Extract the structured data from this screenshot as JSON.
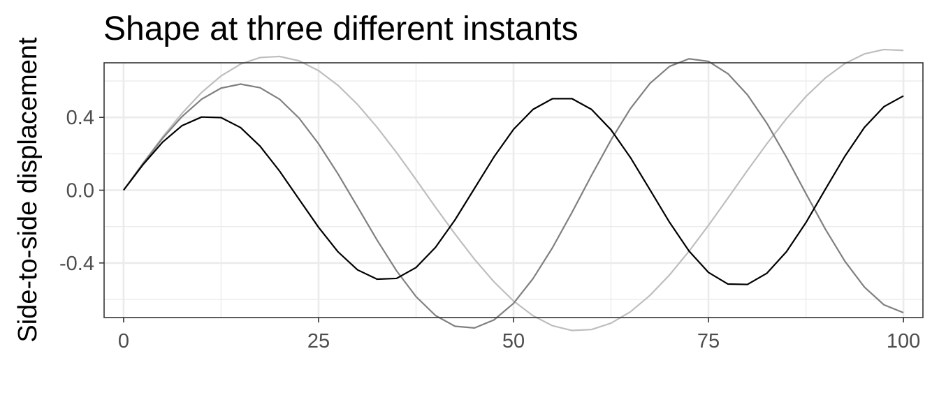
{
  "chart_data": {
    "type": "line",
    "title": "Shape at three different instants",
    "xlabel": "",
    "ylabel": "Side-to-side displacement",
    "xlim": [
      -2.5,
      102.5
    ],
    "ylim": [
      -0.7,
      0.7
    ],
    "x_ticks": [
      0,
      25,
      50,
      75,
      100
    ],
    "x_tick_labels": [
      "0",
      "25",
      "50",
      "75",
      "100"
    ],
    "y_ticks": [
      -0.4,
      0.0,
      0.4
    ],
    "y_tick_labels": [
      "-0.4",
      "0.0",
      "0.4"
    ],
    "x_minor_ticks": [
      12.5,
      37.5,
      62.5,
      87.5
    ],
    "y_minor_ticks": [
      -0.6,
      -0.2,
      0.2,
      0.6
    ],
    "grid": true,
    "legend": "none",
    "x": [
      0,
      2.5,
      5,
      7.5,
      10,
      12.5,
      15,
      17.5,
      20,
      22.5,
      25,
      27.5,
      30,
      32.5,
      35,
      37.5,
      40,
      42.5,
      45,
      47.5,
      50,
      52.5,
      55,
      57.5,
      60,
      62.5,
      65,
      67.5,
      70,
      72.5,
      75,
      77.5,
      80,
      82.5,
      85,
      87.5,
      90,
      92.5,
      95,
      97.5,
      100
    ],
    "series": [
      {
        "color": "#bebebe",
        "values": [
          0,
          0.149,
          0.292,
          0.423,
          0.537,
          0.628,
          0.693,
          0.729,
          0.735,
          0.711,
          0.657,
          0.576,
          0.471,
          0.346,
          0.207,
          0.058,
          -0.094,
          -0.241,
          -0.38,
          -0.504,
          -0.609,
          -0.69,
          -0.745,
          -0.771,
          -0.766,
          -0.731,
          -0.668,
          -0.578,
          -0.466,
          -0.336,
          -0.193,
          -0.043,
          0.109,
          0.256,
          0.393,
          0.515,
          0.617,
          0.696,
          0.749,
          0.773,
          0.768
        ]
      },
      {
        "color": "#808080",
        "values": [
          0,
          0.147,
          0.285,
          0.405,
          0.5,
          0.561,
          0.583,
          0.563,
          0.5,
          0.396,
          0.255,
          0.089,
          -0.092,
          -0.274,
          -0.443,
          -0.585,
          -0.689,
          -0.748,
          -0.757,
          -0.713,
          -0.622,
          -0.486,
          -0.316,
          -0.122,
          0.081,
          0.276,
          0.449,
          0.587,
          0.68,
          0.722,
          0.708,
          0.64,
          0.524,
          0.367,
          0.181,
          -0.019,
          -0.215,
          -0.391,
          -0.533,
          -0.63,
          -0.673
        ]
      },
      {
        "color": "#000000",
        "values": [
          0,
          0.141,
          0.264,
          0.355,
          0.402,
          0.399,
          0.344,
          0.242,
          0.105,
          -0.05,
          -0.204,
          -0.339,
          -0.438,
          -0.489,
          -0.485,
          -0.425,
          -0.314,
          -0.163,
          0.01,
          0.183,
          0.334,
          0.444,
          0.503,
          0.503,
          0.444,
          0.332,
          0.179,
          0.002,
          -0.176,
          -0.334,
          -0.452,
          -0.516,
          -0.518,
          -0.456,
          -0.338,
          -0.178,
          0.006,
          0.187,
          0.345,
          0.459,
          0.518
        ]
      }
    ]
  }
}
